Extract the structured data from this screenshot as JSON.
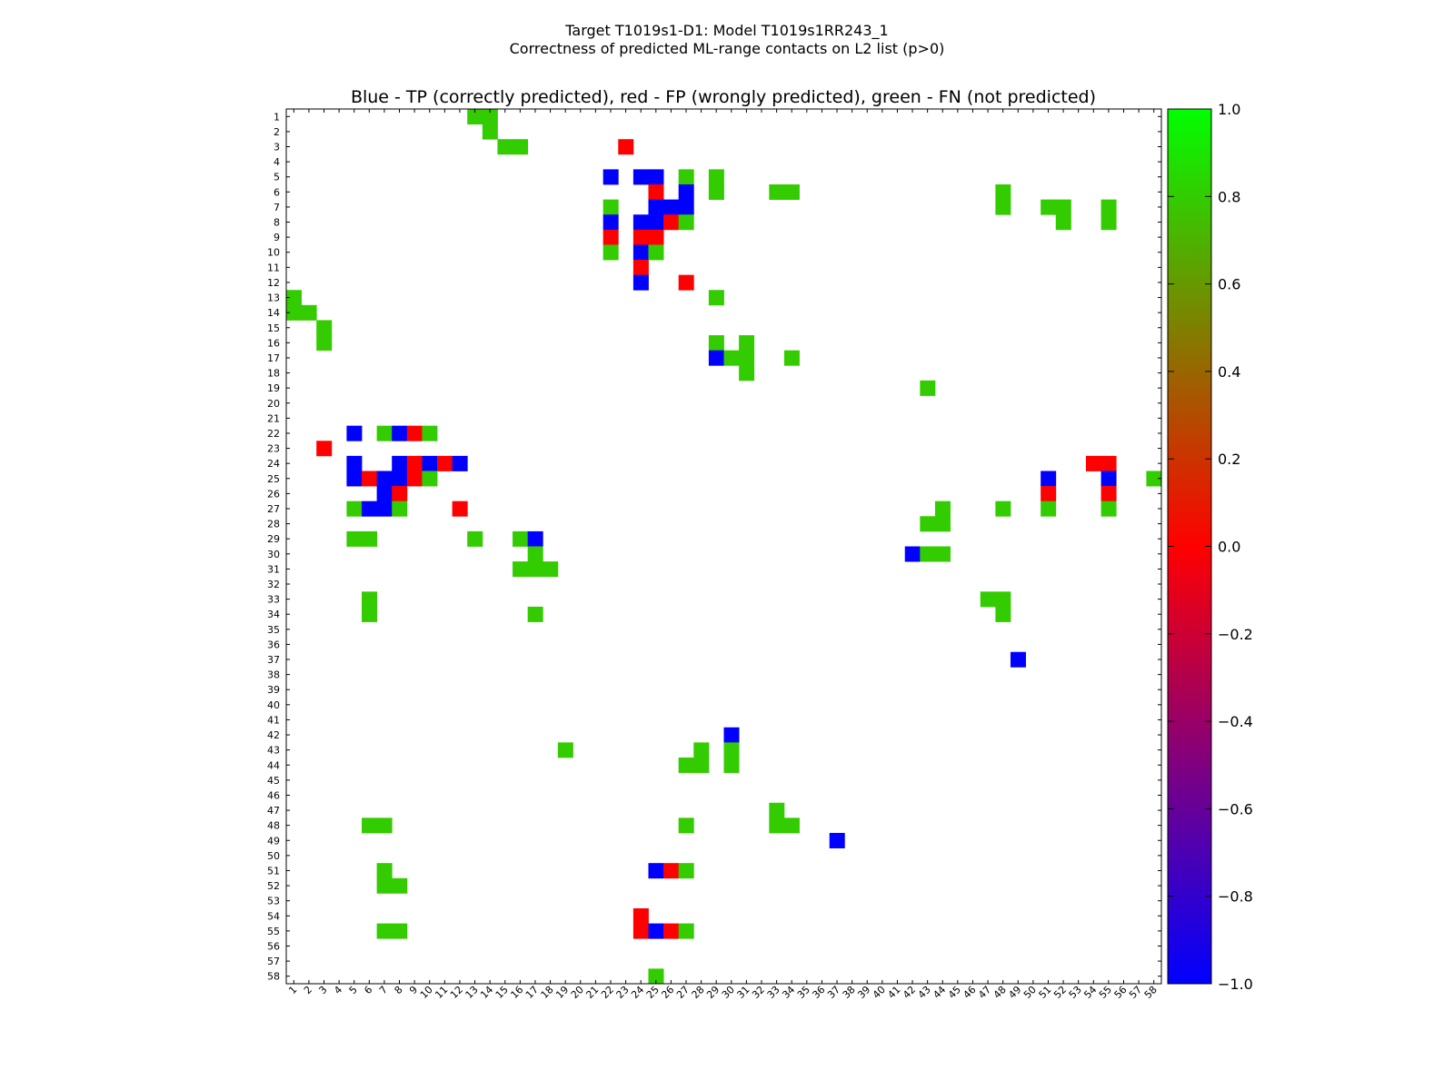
{
  "chart_data": {
    "type": "heatmap",
    "suptitle_line1": "Target T1019s1-D1: Model T1019s1RR243_1",
    "suptitle_line2": "Correctness of predicted ML-range contacts on L2 list (p>0)",
    "title": "Blue - TP (correctly predicted), red - FP (wrongly predicted), green - FN (not predicted)",
    "n": 58,
    "xlabel": "",
    "ylabel": "",
    "colors": {
      "tp": "#0000ff",
      "fp": "#ff0000",
      "fn": "#33cc00"
    },
    "legend": {
      "tp": -1,
      "fp": 0,
      "fn": 0.8
    },
    "colorbar": {
      "range": [
        -1.0,
        1.0
      ],
      "stops": [
        "#0000ff",
        "#ff0000",
        "#00ff00"
      ],
      "ticks": [
        "1.0",
        "0.8",
        "0.6",
        "0.4",
        "0.2",
        "0.0",
        "−0.2",
        "−0.4",
        "−0.6",
        "−0.8",
        "−1.0"
      ]
    },
    "cells": [
      {
        "row": 1,
        "col": 13,
        "class": "fn"
      },
      {
        "row": 1,
        "col": 14,
        "class": "fn"
      },
      {
        "row": 2,
        "col": 14,
        "class": "fn"
      },
      {
        "row": 3,
        "col": 15,
        "class": "fn"
      },
      {
        "row": 3,
        "col": 16,
        "class": "fn"
      },
      {
        "row": 3,
        "col": 23,
        "class": "fp"
      },
      {
        "row": 5,
        "col": 22,
        "class": "tp"
      },
      {
        "row": 5,
        "col": 24,
        "class": "tp"
      },
      {
        "row": 5,
        "col": 25,
        "class": "tp"
      },
      {
        "row": 5,
        "col": 27,
        "class": "fn"
      },
      {
        "row": 5,
        "col": 29,
        "class": "fn"
      },
      {
        "row": 6,
        "col": 25,
        "class": "fp"
      },
      {
        "row": 6,
        "col": 27,
        "class": "tp"
      },
      {
        "row": 6,
        "col": 29,
        "class": "fn"
      },
      {
        "row": 6,
        "col": 33,
        "class": "fn"
      },
      {
        "row": 6,
        "col": 34,
        "class": "fn"
      },
      {
        "row": 6,
        "col": 48,
        "class": "fn"
      },
      {
        "row": 7,
        "col": 22,
        "class": "fn"
      },
      {
        "row": 7,
        "col": 25,
        "class": "tp"
      },
      {
        "row": 7,
        "col": 26,
        "class": "tp"
      },
      {
        "row": 7,
        "col": 27,
        "class": "tp"
      },
      {
        "row": 7,
        "col": 48,
        "class": "fn"
      },
      {
        "row": 7,
        "col": 51,
        "class": "fn"
      },
      {
        "row": 7,
        "col": 52,
        "class": "fn"
      },
      {
        "row": 7,
        "col": 55,
        "class": "fn"
      },
      {
        "row": 8,
        "col": 22,
        "class": "tp"
      },
      {
        "row": 8,
        "col": 24,
        "class": "tp"
      },
      {
        "row": 8,
        "col": 25,
        "class": "tp"
      },
      {
        "row": 8,
        "col": 26,
        "class": "fp"
      },
      {
        "row": 8,
        "col": 27,
        "class": "fn"
      },
      {
        "row": 8,
        "col": 52,
        "class": "fn"
      },
      {
        "row": 8,
        "col": 55,
        "class": "fn"
      },
      {
        "row": 9,
        "col": 22,
        "class": "fp"
      },
      {
        "row": 9,
        "col": 24,
        "class": "fp"
      },
      {
        "row": 9,
        "col": 25,
        "class": "fp"
      },
      {
        "row": 10,
        "col": 22,
        "class": "fn"
      },
      {
        "row": 10,
        "col": 24,
        "class": "tp"
      },
      {
        "row": 10,
        "col": 25,
        "class": "fn"
      },
      {
        "row": 11,
        "col": 24,
        "class": "fp"
      },
      {
        "row": 12,
        "col": 24,
        "class": "tp"
      },
      {
        "row": 12,
        "col": 27,
        "class": "fp"
      },
      {
        "row": 13,
        "col": 1,
        "class": "fn"
      },
      {
        "row": 13,
        "col": 29,
        "class": "fn"
      },
      {
        "row": 14,
        "col": 1,
        "class": "fn"
      },
      {
        "row": 14,
        "col": 2,
        "class": "fn"
      },
      {
        "row": 15,
        "col": 3,
        "class": "fn"
      },
      {
        "row": 16,
        "col": 3,
        "class": "fn"
      },
      {
        "row": 16,
        "col": 29,
        "class": "fn"
      },
      {
        "row": 16,
        "col": 31,
        "class": "fn"
      },
      {
        "row": 17,
        "col": 29,
        "class": "tp"
      },
      {
        "row": 17,
        "col": 30,
        "class": "fn"
      },
      {
        "row": 17,
        "col": 31,
        "class": "fn"
      },
      {
        "row": 17,
        "col": 34,
        "class": "fn"
      },
      {
        "row": 18,
        "col": 31,
        "class": "fn"
      },
      {
        "row": 19,
        "col": 43,
        "class": "fn"
      },
      {
        "row": 22,
        "col": 5,
        "class": "tp"
      },
      {
        "row": 22,
        "col": 7,
        "class": "fn"
      },
      {
        "row": 22,
        "col": 8,
        "class": "tp"
      },
      {
        "row": 22,
        "col": 9,
        "class": "fp"
      },
      {
        "row": 22,
        "col": 10,
        "class": "fn"
      },
      {
        "row": 23,
        "col": 3,
        "class": "fp"
      },
      {
        "row": 24,
        "col": 5,
        "class": "tp"
      },
      {
        "row": 24,
        "col": 8,
        "class": "tp"
      },
      {
        "row": 24,
        "col": 9,
        "class": "fp"
      },
      {
        "row": 24,
        "col": 10,
        "class": "tp"
      },
      {
        "row": 24,
        "col": 11,
        "class": "fp"
      },
      {
        "row": 24,
        "col": 12,
        "class": "tp"
      },
      {
        "row": 24,
        "col": 54,
        "class": "fp"
      },
      {
        "row": 24,
        "col": 55,
        "class": "fp"
      },
      {
        "row": 25,
        "col": 5,
        "class": "tp"
      },
      {
        "row": 25,
        "col": 6,
        "class": "fp"
      },
      {
        "row": 25,
        "col": 7,
        "class": "tp"
      },
      {
        "row": 25,
        "col": 8,
        "class": "tp"
      },
      {
        "row": 25,
        "col": 9,
        "class": "fp"
      },
      {
        "row": 25,
        "col": 10,
        "class": "fn"
      },
      {
        "row": 25,
        "col": 51,
        "class": "tp"
      },
      {
        "row": 25,
        "col": 55,
        "class": "tp"
      },
      {
        "row": 25,
        "col": 58,
        "class": "fn"
      },
      {
        "row": 26,
        "col": 7,
        "class": "tp"
      },
      {
        "row": 26,
        "col": 8,
        "class": "fp"
      },
      {
        "row": 26,
        "col": 51,
        "class": "fp"
      },
      {
        "row": 26,
        "col": 55,
        "class": "fp"
      },
      {
        "row": 27,
        "col": 5,
        "class": "fn"
      },
      {
        "row": 27,
        "col": 6,
        "class": "tp"
      },
      {
        "row": 27,
        "col": 7,
        "class": "tp"
      },
      {
        "row": 27,
        "col": 8,
        "class": "fn"
      },
      {
        "row": 27,
        "col": 12,
        "class": "fp"
      },
      {
        "row": 27,
        "col": 44,
        "class": "fn"
      },
      {
        "row": 27,
        "col": 48,
        "class": "fn"
      },
      {
        "row": 27,
        "col": 51,
        "class": "fn"
      },
      {
        "row": 27,
        "col": 55,
        "class": "fn"
      },
      {
        "row": 28,
        "col": 43,
        "class": "fn"
      },
      {
        "row": 28,
        "col": 44,
        "class": "fn"
      },
      {
        "row": 29,
        "col": 5,
        "class": "fn"
      },
      {
        "row": 29,
        "col": 6,
        "class": "fn"
      },
      {
        "row": 29,
        "col": 13,
        "class": "fn"
      },
      {
        "row": 29,
        "col": 16,
        "class": "fn"
      },
      {
        "row": 29,
        "col": 17,
        "class": "tp"
      },
      {
        "row": 30,
        "col": 17,
        "class": "fn"
      },
      {
        "row": 30,
        "col": 42,
        "class": "tp"
      },
      {
        "row": 30,
        "col": 43,
        "class": "fn"
      },
      {
        "row": 30,
        "col": 44,
        "class": "fn"
      },
      {
        "row": 31,
        "col": 16,
        "class": "fn"
      },
      {
        "row": 31,
        "col": 17,
        "class": "fn"
      },
      {
        "row": 31,
        "col": 18,
        "class": "fn"
      },
      {
        "row": 33,
        "col": 6,
        "class": "fn"
      },
      {
        "row": 33,
        "col": 47,
        "class": "fn"
      },
      {
        "row": 33,
        "col": 48,
        "class": "fn"
      },
      {
        "row": 34,
        "col": 6,
        "class": "fn"
      },
      {
        "row": 34,
        "col": 17,
        "class": "fn"
      },
      {
        "row": 34,
        "col": 48,
        "class": "fn"
      },
      {
        "row": 37,
        "col": 49,
        "class": "tp"
      },
      {
        "row": 42,
        "col": 30,
        "class": "tp"
      },
      {
        "row": 43,
        "col": 19,
        "class": "fn"
      },
      {
        "row": 43,
        "col": 28,
        "class": "fn"
      },
      {
        "row": 43,
        "col": 30,
        "class": "fn"
      },
      {
        "row": 44,
        "col": 27,
        "class": "fn"
      },
      {
        "row": 44,
        "col": 28,
        "class": "fn"
      },
      {
        "row": 44,
        "col": 30,
        "class": "fn"
      },
      {
        "row": 47,
        "col": 33,
        "class": "fn"
      },
      {
        "row": 48,
        "col": 6,
        "class": "fn"
      },
      {
        "row": 48,
        "col": 7,
        "class": "fn"
      },
      {
        "row": 48,
        "col": 27,
        "class": "fn"
      },
      {
        "row": 48,
        "col": 33,
        "class": "fn"
      },
      {
        "row": 48,
        "col": 34,
        "class": "fn"
      },
      {
        "row": 49,
        "col": 37,
        "class": "tp"
      },
      {
        "row": 51,
        "col": 7,
        "class": "fn"
      },
      {
        "row": 51,
        "col": 25,
        "class": "tp"
      },
      {
        "row": 51,
        "col": 26,
        "class": "fp"
      },
      {
        "row": 51,
        "col": 27,
        "class": "fn"
      },
      {
        "row": 52,
        "col": 7,
        "class": "fn"
      },
      {
        "row": 52,
        "col": 8,
        "class": "fn"
      },
      {
        "row": 54,
        "col": 24,
        "class": "fp"
      },
      {
        "row": 55,
        "col": 7,
        "class": "fn"
      },
      {
        "row": 55,
        "col": 8,
        "class": "fn"
      },
      {
        "row": 55,
        "col": 24,
        "class": "fp"
      },
      {
        "row": 55,
        "col": 25,
        "class": "tp"
      },
      {
        "row": 55,
        "col": 26,
        "class": "fp"
      },
      {
        "row": 55,
        "col": 27,
        "class": "fn"
      },
      {
        "row": 58,
        "col": 25,
        "class": "fn"
      }
    ]
  }
}
